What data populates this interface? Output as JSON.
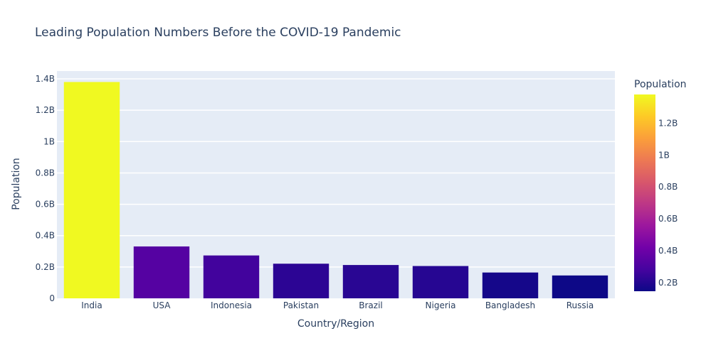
{
  "chart_data": {
    "type": "bar",
    "title": "Leading Population Numbers Before the COVID-19 Pandemic",
    "xlabel": "Country/Region",
    "ylabel": "Population",
    "categories": [
      "India",
      "USA",
      "Indonesia",
      "Pakistan",
      "Brazil",
      "Nigeria",
      "Bangladesh",
      "Russia"
    ],
    "values": [
      1380000000,
      331000000,
      273500000,
      220900000,
      212600000,
      206100000,
      164700000,
      145900000
    ],
    "ylim": [
      0,
      1450000000
    ],
    "yticks": [
      0,
      200000000,
      400000000,
      600000000,
      800000000,
      1000000000,
      1200000000,
      1400000000
    ],
    "ytick_labels": [
      "0",
      "0.2B",
      "0.4B",
      "0.6B",
      "0.8B",
      "1B",
      "1.2B",
      "1.4B"
    ],
    "grid": true,
    "colorbar": {
      "title": "Population",
      "min": 145900000,
      "max": 1380000000,
      "ticks": [
        200000000,
        400000000,
        600000000,
        800000000,
        1000000000,
        1200000000
      ],
      "tick_labels": [
        "0.2B",
        "0.4B",
        "0.6B",
        "0.8B",
        "1B",
        "1.2B"
      ],
      "colorscale": [
        "#0d0887",
        "#46039f",
        "#7201a8",
        "#9c179e",
        "#bd3786",
        "#d8576b",
        "#ed7953",
        "#fb9f3a",
        "#fdca26",
        "#f0f921"
      ]
    },
    "colors": {
      "plot_bg": "#e5ecf6",
      "grid": "#ffffff",
      "text": "#2a3f5f"
    }
  }
}
